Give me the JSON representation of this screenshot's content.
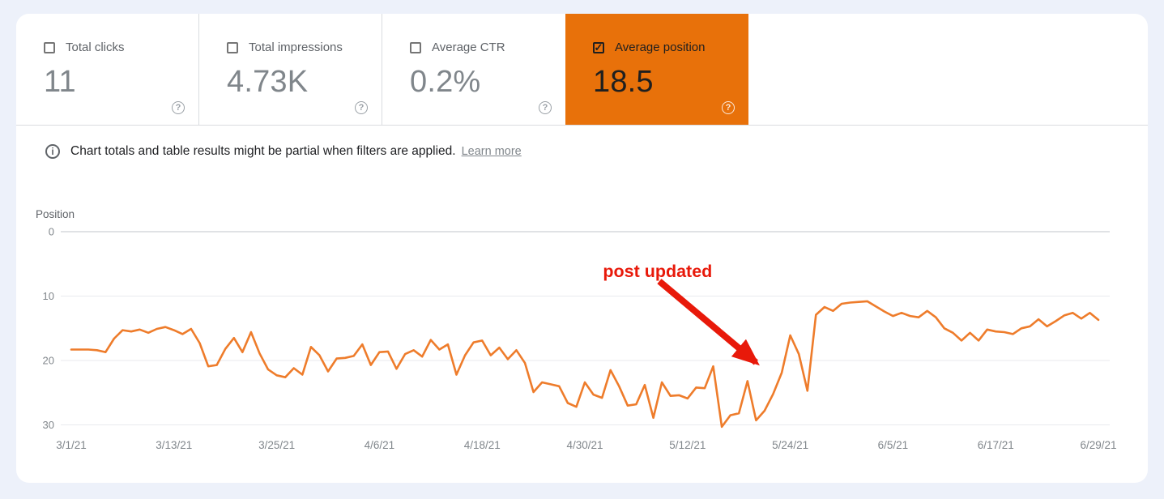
{
  "icons": {
    "help": "?",
    "info": "i",
    "check": "✓"
  },
  "metrics": {
    "cards": [
      {
        "label": "Total clicks",
        "value": "11",
        "checked": false,
        "selected": false
      },
      {
        "label": "Total impressions",
        "value": "4.73K",
        "checked": false,
        "selected": false
      },
      {
        "label": "Average CTR",
        "value": "0.2%",
        "checked": false,
        "selected": false
      },
      {
        "label": "Average position",
        "value": "18.5",
        "checked": true,
        "selected": true,
        "color": "#e8710a"
      }
    ]
  },
  "notice": {
    "text": "Chart totals and table results might be partial when filters are applied.",
    "link": "Learn more"
  },
  "chart_data": {
    "type": "line",
    "title": "",
    "ylabel": "Position",
    "xlabel": "",
    "y_ticks": [
      0,
      10,
      20,
      30
    ],
    "ylim": [
      0,
      30
    ],
    "y_inverted": true,
    "grid": true,
    "x_unit": "day",
    "x_tick_labels": [
      "3/1/21",
      "3/13/21",
      "3/25/21",
      "4/6/21",
      "4/18/21",
      "4/30/21",
      "5/12/21",
      "5/24/21",
      "6/5/21",
      "6/17/21",
      "6/29/21"
    ],
    "x_tick_days": [
      0,
      12,
      24,
      36,
      48,
      60,
      72,
      84,
      96,
      108,
      120
    ],
    "series": [
      {
        "name": "Average position",
        "color": "#ee7c2b",
        "values": [
          18.3,
          18.3,
          18.3,
          18.4,
          18.7,
          16.6,
          15.3,
          15.5,
          15.2,
          15.7,
          15.1,
          14.8,
          15.3,
          15.9,
          15.1,
          17.3,
          20.9,
          20.7,
          18.2,
          16.5,
          18.7,
          15.6,
          18.9,
          21.4,
          22.3,
          22.6,
          21.2,
          22.2,
          17.9,
          19.2,
          21.7,
          19.7,
          19.6,
          19.3,
          17.5,
          20.7,
          18.7,
          18.6,
          21.3,
          19.0,
          18.4,
          19.4,
          16.8,
          18.3,
          17.5,
          22.2,
          19.2,
          17.2,
          16.9,
          19.2,
          18.0,
          19.8,
          18.4,
          20.4,
          24.9,
          23.4,
          23.7,
          24.0,
          26.6,
          27.2,
          23.4,
          25.3,
          25.8,
          21.5,
          24.0,
          27.0,
          26.8,
          23.8,
          28.9,
          23.4,
          25.5,
          25.4,
          25.9,
          24.2,
          24.3,
          20.9,
          30.3,
          28.5,
          28.2,
          23.2,
          29.3,
          27.8,
          25.2,
          21.9,
          16.1,
          19.0,
          24.7,
          12.9,
          11.7,
          12.3,
          11.2,
          11.0,
          10.9,
          10.8,
          11.6,
          12.4,
          13.1,
          12.6,
          13.1,
          13.3,
          12.3,
          13.3,
          15.0,
          15.7,
          16.9,
          15.7,
          16.9,
          15.2,
          15.5,
          15.6,
          15.9,
          15.0,
          14.7,
          13.6,
          14.7,
          13.9,
          13.0,
          12.6,
          13.5,
          12.6,
          13.7
        ]
      }
    ],
    "annotation": {
      "text": "post updated",
      "color": "#e8190a",
      "text_at": {
        "day": 68.5,
        "position": 6.3
      },
      "arrow_from": {
        "day": 68.7,
        "position": 7.7
      },
      "arrow_to": {
        "day": 80.0,
        "position": 20.3
      }
    }
  }
}
